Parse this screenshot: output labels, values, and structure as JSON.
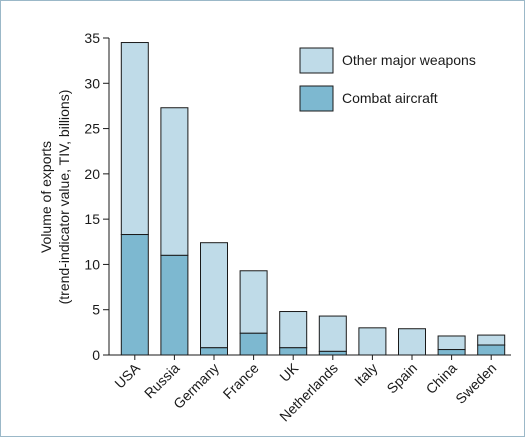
{
  "chart_data": {
    "type": "bar",
    "stacked": true,
    "categories": [
      "USA",
      "Russia",
      "Germany",
      "France",
      "UK",
      "Netherlands",
      "Italy",
      "Spain",
      "China",
      "Sweden"
    ],
    "series": [
      {
        "name": "Combat aircraft",
        "values": [
          13.3,
          11.0,
          0.8,
          2.4,
          0.8,
          0.4,
          0.0,
          0.0,
          0.6,
          1.1
        ],
        "color": "#7db8d0"
      },
      {
        "name": "Other major weapons",
        "values": [
          21.2,
          16.3,
          11.6,
          6.9,
          4.0,
          3.9,
          3.0,
          2.9,
          1.5,
          1.1
        ],
        "color": "#bfdbe8"
      }
    ],
    "ylabel_line1": "Volume of exports",
    "ylabel_line2": "(trend-indicator value, TIV, billions)",
    "xlabel": "",
    "ylim": [
      0,
      35
    ],
    "yticks": [
      0,
      5,
      10,
      15,
      20,
      25,
      30,
      35
    ],
    "grid": false,
    "legend_position": "top-right"
  }
}
